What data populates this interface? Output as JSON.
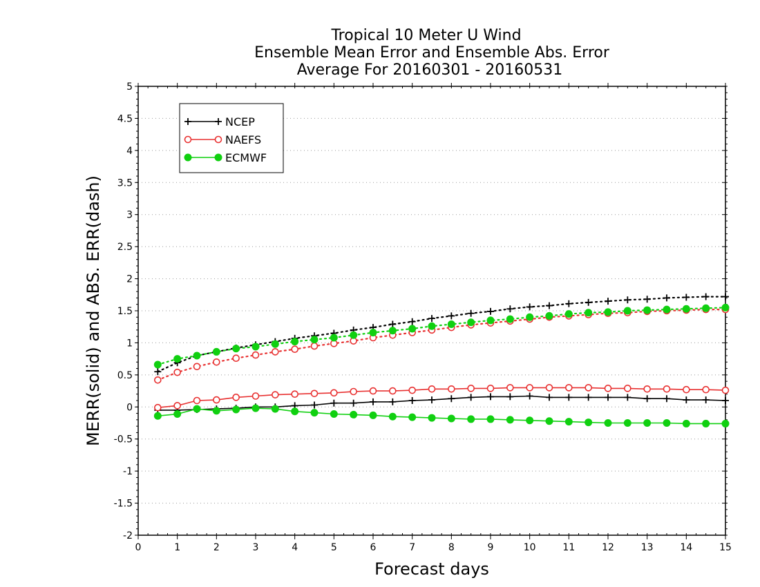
{
  "chart_data": {
    "type": "line",
    "title": [
      "Tropical 10 Meter U Wind",
      "Ensemble Mean Error and Ensemble Abs. Error",
      "Average For 20160301 - 20160531"
    ],
    "xlabel": "Forecast days",
    "ylabel": "MERR(solid) and ABS. ERR(dash)",
    "xlim": [
      0,
      15
    ],
    "ylim": [
      -2,
      5
    ],
    "xticks": [
      0,
      1,
      2,
      3,
      4,
      5,
      6,
      7,
      8,
      9,
      10,
      11,
      12,
      13,
      14,
      15
    ],
    "yticks": [
      -2,
      -1.5,
      -1,
      -0.5,
      0,
      0.5,
      1,
      1.5,
      2,
      2.5,
      3,
      3.5,
      4,
      4.5,
      5
    ],
    "ytick_labels": [
      "-2",
      "-1.5",
      "-1",
      "-0.5",
      "0",
      "0.5",
      "1",
      "1.5",
      "2",
      "2.5",
      "3",
      "3.5",
      "4",
      "4.5",
      "5"
    ],
    "grid": "horizontal dotted",
    "legend_position": "top-left",
    "x": [
      0.5,
      1,
      1.5,
      2,
      2.5,
      3,
      3.5,
      4,
      4.5,
      5,
      5.5,
      6,
      6.5,
      7,
      7.5,
      8,
      8.5,
      9,
      9.5,
      10,
      10.5,
      11,
      11.5,
      12,
      12.5,
      13,
      13.5,
      14,
      14.5,
      15
    ],
    "series": [
      {
        "name": "NCEP",
        "color": "#000000",
        "marker": "plus",
        "merr": [
          -0.05,
          -0.05,
          -0.04,
          -0.03,
          -0.02,
          0.0,
          0.0,
          0.02,
          0.03,
          0.06,
          0.06,
          0.08,
          0.08,
          0.1,
          0.11,
          0.13,
          0.15,
          0.16,
          0.16,
          0.17,
          0.15,
          0.15,
          0.15,
          0.15,
          0.15,
          0.13,
          0.13,
          0.11,
          0.11,
          0.1
        ],
        "abs_err": [
          0.55,
          0.69,
          0.8,
          0.86,
          0.92,
          0.97,
          1.02,
          1.07,
          1.11,
          1.15,
          1.2,
          1.24,
          1.29,
          1.33,
          1.38,
          1.42,
          1.46,
          1.49,
          1.53,
          1.56,
          1.58,
          1.61,
          1.63,
          1.65,
          1.67,
          1.68,
          1.7,
          1.71,
          1.72,
          1.72
        ]
      },
      {
        "name": "NAEFS",
        "color": "#e83030",
        "marker": "open-circle",
        "merr": [
          -0.01,
          0.02,
          0.1,
          0.11,
          0.15,
          0.17,
          0.19,
          0.2,
          0.21,
          0.22,
          0.24,
          0.25,
          0.25,
          0.26,
          0.28,
          0.28,
          0.29,
          0.29,
          0.3,
          0.3,
          0.3,
          0.3,
          0.3,
          0.29,
          0.29,
          0.28,
          0.28,
          0.27,
          0.27,
          0.26
        ],
        "abs_err": [
          0.42,
          0.54,
          0.63,
          0.7,
          0.76,
          0.81,
          0.86,
          0.9,
          0.95,
          0.99,
          1.03,
          1.08,
          1.12,
          1.16,
          1.2,
          1.24,
          1.28,
          1.31,
          1.34,
          1.37,
          1.4,
          1.42,
          1.44,
          1.46,
          1.47,
          1.49,
          1.5,
          1.51,
          1.52,
          1.52
        ]
      },
      {
        "name": "ECMWF",
        "color": "#10d010",
        "marker": "filled-circle",
        "merr": [
          -0.14,
          -0.11,
          -0.03,
          -0.06,
          -0.04,
          -0.02,
          -0.03,
          -0.07,
          -0.09,
          -0.11,
          -0.12,
          -0.13,
          -0.15,
          -0.16,
          -0.17,
          -0.18,
          -0.19,
          -0.19,
          -0.2,
          -0.21,
          -0.22,
          -0.23,
          -0.24,
          -0.25,
          -0.25,
          -0.25,
          -0.25,
          -0.26,
          -0.26,
          -0.26
        ],
        "abs_err": [
          0.66,
          0.75,
          0.8,
          0.86,
          0.91,
          0.94,
          0.98,
          1.02,
          1.05,
          1.08,
          1.12,
          1.16,
          1.19,
          1.22,
          1.26,
          1.29,
          1.32,
          1.35,
          1.37,
          1.4,
          1.42,
          1.45,
          1.47,
          1.48,
          1.5,
          1.51,
          1.52,
          1.53,
          1.54,
          1.55
        ]
      }
    ]
  }
}
